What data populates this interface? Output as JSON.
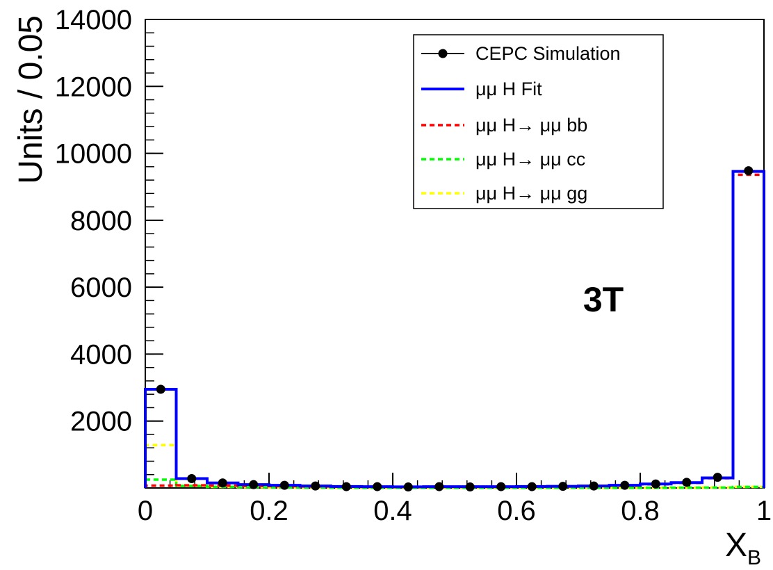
{
  "chart_data": {
    "type": "line",
    "title": "",
    "xlabel": "X",
    "xlabel_sub": "B",
    "ylabel": "Units / 0.05",
    "xlim": [
      0,
      1
    ],
    "ylim": [
      0,
      14000
    ],
    "x_ticks": [
      0,
      0.2,
      0.4,
      0.6,
      0.8,
      1
    ],
    "x_tick_labels": [
      "0",
      "0.2",
      "0.4",
      "0.6",
      "0.8",
      "1"
    ],
    "y_ticks": [
      2000,
      4000,
      6000,
      8000,
      10000,
      12000,
      14000
    ],
    "y_tick_labels": [
      "2000",
      "4000",
      "6000",
      "8000",
      "10000",
      "12000",
      "14000"
    ],
    "grid": false,
    "legend_position": "top-right",
    "annotation": "3T",
    "bin_edges": [
      0,
      0.05,
      0.1,
      0.15,
      0.2,
      0.25,
      0.3,
      0.35,
      0.4,
      0.45,
      0.5,
      0.55,
      0.6,
      0.65,
      0.7,
      0.75,
      0.8,
      0.85,
      0.9,
      0.95,
      1.0
    ],
    "series": [
      {
        "name": "CEPC Simulation",
        "style": "points",
        "color": "#000000",
        "x": [
          0.025,
          0.075,
          0.125,
          0.175,
          0.225,
          0.275,
          0.325,
          0.375,
          0.425,
          0.475,
          0.525,
          0.575,
          0.625,
          0.675,
          0.725,
          0.775,
          0.825,
          0.875,
          0.925,
          0.975
        ],
        "values": [
          2950,
          280,
          150,
          100,
          80,
          60,
          40,
          40,
          30,
          40,
          30,
          40,
          40,
          50,
          60,
          80,
          120,
          170,
          320,
          9480
        ]
      },
      {
        "name": "μμ H Fit",
        "style": "solid",
        "color": "#0000ff",
        "values": [
          2950,
          280,
          150,
          100,
          80,
          60,
          45,
          40,
          35,
          40,
          40,
          40,
          45,
          50,
          60,
          80,
          120,
          160,
          300,
          9460
        ]
      },
      {
        "name": "μμ H→ μμ bb",
        "style": "dashed",
        "color": "#ff0000",
        "values": [
          70,
          80,
          70,
          60,
          55,
          45,
          40,
          35,
          30,
          35,
          35,
          35,
          40,
          45,
          55,
          70,
          110,
          150,
          290,
          9360
        ]
      },
      {
        "name": "μμ H→ μμ cc",
        "style": "dashed",
        "color": "#00ff00",
        "values": [
          250,
          60,
          30,
          20,
          15,
          10,
          8,
          6,
          5,
          5,
          5,
          5,
          5,
          5,
          5,
          6,
          8,
          10,
          12,
          30
        ]
      },
      {
        "name": "μμ H→ μμ gg",
        "style": "dashed",
        "color": "#ffff00",
        "values": [
          1280,
          60,
          30,
          20,
          15,
          10,
          8,
          6,
          5,
          5,
          5,
          5,
          5,
          5,
          5,
          6,
          8,
          10,
          15,
          30
        ]
      }
    ]
  }
}
